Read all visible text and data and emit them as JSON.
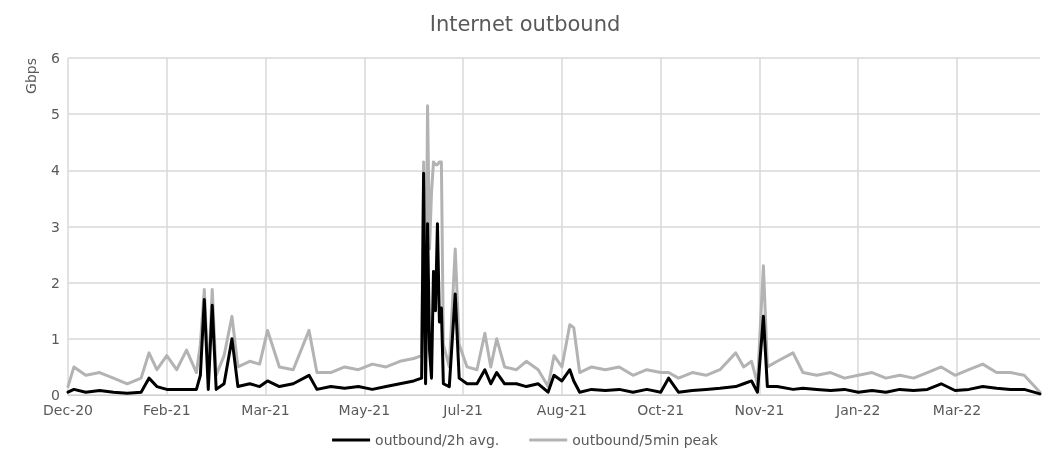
{
  "chart_data": {
    "type": "line",
    "title": "Internet outbound",
    "ylabel": "Gbps",
    "x": [
      "2020-12-15",
      "2020-12-18",
      "2020-12-24",
      "2020-12-31",
      "2021-01-07",
      "2021-01-14",
      "2021-01-21",
      "2021-01-25",
      "2021-01-29",
      "2021-02-03",
      "2021-02-08",
      "2021-02-13",
      "2021-02-18",
      "2021-02-20",
      "2021-02-22",
      "2021-02-24",
      "2021-02-26",
      "2021-02-28",
      "2021-03-04",
      "2021-03-08",
      "2021-03-11",
      "2021-03-17",
      "2021-03-22",
      "2021-03-26",
      "2021-04-01",
      "2021-04-08",
      "2021-04-16",
      "2021-04-20",
      "2021-04-27",
      "2021-05-04",
      "2021-05-11",
      "2021-05-18",
      "2021-05-25",
      "2021-06-01",
      "2021-06-08",
      "2021-06-12",
      "2021-06-13",
      "2021-06-14",
      "2021-06-15",
      "2021-06-16",
      "2021-06-17",
      "2021-06-18",
      "2021-06-19",
      "2021-06-20",
      "2021-06-21",
      "2021-06-22",
      "2021-06-23",
      "2021-06-26",
      "2021-06-29",
      "2021-07-01",
      "2021-07-05",
      "2021-07-10",
      "2021-07-14",
      "2021-07-17",
      "2021-07-20",
      "2021-07-24",
      "2021-07-30",
      "2021-08-04",
      "2021-08-10",
      "2021-08-15",
      "2021-08-18",
      "2021-08-22",
      "2021-08-26",
      "2021-08-28",
      "2021-08-31",
      "2021-09-06",
      "2021-09-13",
      "2021-09-20",
      "2021-09-27",
      "2021-10-04",
      "2021-10-11",
      "2021-10-15",
      "2021-10-20",
      "2021-10-27",
      "2021-11-03",
      "2021-11-10",
      "2021-11-18",
      "2021-11-22",
      "2021-11-26",
      "2021-11-29",
      "2021-12-02",
      "2021-12-04",
      "2021-12-09",
      "2021-12-17",
      "2021-12-22",
      "2021-12-29",
      "2022-01-05",
      "2022-01-12",
      "2022-01-19",
      "2022-01-26",
      "2022-02-02",
      "2022-02-09",
      "2022-02-16",
      "2022-02-23",
      "2022-03-02",
      "2022-03-09",
      "2022-03-16",
      "2022-03-23",
      "2022-03-30",
      "2022-04-06",
      "2022-04-13",
      "2022-04-21"
    ],
    "series": [
      {
        "name": "outbound/2h avg.",
        "color": "#000000",
        "values": [
          0.05,
          0.1,
          0.05,
          0.08,
          0.05,
          0.03,
          0.05,
          0.3,
          0.15,
          0.1,
          0.1,
          0.1,
          0.1,
          0.35,
          1.7,
          0.1,
          1.6,
          0.1,
          0.2,
          1.0,
          0.15,
          0.2,
          0.15,
          0.25,
          0.15,
          0.2,
          0.35,
          0.1,
          0.15,
          0.12,
          0.15,
          0.1,
          0.15,
          0.2,
          0.25,
          0.3,
          3.95,
          0.2,
          3.05,
          0.8,
          0.3,
          2.2,
          1.5,
          3.05,
          1.3,
          1.55,
          0.2,
          0.15,
          1.8,
          0.3,
          0.2,
          0.2,
          0.45,
          0.2,
          0.4,
          0.2,
          0.2,
          0.15,
          0.2,
          0.05,
          0.35,
          0.25,
          0.45,
          0.25,
          0.05,
          0.1,
          0.08,
          0.1,
          0.05,
          0.1,
          0.05,
          0.3,
          0.05,
          0.08,
          0.1,
          0.12,
          0.15,
          0.2,
          0.25,
          0.05,
          1.4,
          0.15,
          0.15,
          0.1,
          0.12,
          0.1,
          0.08,
          0.1,
          0.05,
          0.08,
          0.05,
          0.1,
          0.08,
          0.1,
          0.2,
          0.08,
          0.1,
          0.15,
          0.12,
          0.1,
          0.1,
          0.02
        ]
      },
      {
        "name": "outbound/5min peak",
        "color": "#b3b3b3",
        "values": [
          0.15,
          0.5,
          0.35,
          0.4,
          0.3,
          0.2,
          0.3,
          0.75,
          0.45,
          0.7,
          0.45,
          0.8,
          0.4,
          0.9,
          1.88,
          0.3,
          1.88,
          0.35,
          0.7,
          1.4,
          0.5,
          0.6,
          0.55,
          1.15,
          0.5,
          0.45,
          1.15,
          0.4,
          0.4,
          0.5,
          0.45,
          0.55,
          0.5,
          0.6,
          0.65,
          0.7,
          4.15,
          0.8,
          5.15,
          2.6,
          3.6,
          4.15,
          4.1,
          4.1,
          4.15,
          4.15,
          0.9,
          0.5,
          2.6,
          0.9,
          0.5,
          0.45,
          1.1,
          0.5,
          1.0,
          0.5,
          0.45,
          0.6,
          0.45,
          0.15,
          0.7,
          0.5,
          1.25,
          1.2,
          0.4,
          0.5,
          0.45,
          0.5,
          0.35,
          0.45,
          0.4,
          0.4,
          0.3,
          0.4,
          0.35,
          0.45,
          0.75,
          0.5,
          0.6,
          0.2,
          2.3,
          0.5,
          0.6,
          0.75,
          0.4,
          0.35,
          0.4,
          0.3,
          0.35,
          0.4,
          0.3,
          0.35,
          0.3,
          0.4,
          0.5,
          0.35,
          0.45,
          0.55,
          0.4,
          0.4,
          0.35,
          0.05
        ]
      }
    ],
    "xlim": [
      "2020-12-15",
      "2022-04-21"
    ],
    "xticks": [
      {
        "value": "2020-12-15",
        "label": "Dec-20"
      },
      {
        "value": "2021-02-03",
        "label": "Feb-21"
      },
      {
        "value": "2021-03-25",
        "label": "Mar-21"
      },
      {
        "value": "2021-05-14",
        "label": "May-21"
      },
      {
        "value": "2021-07-03",
        "label": "Jul-21"
      },
      {
        "value": "2021-08-22",
        "label": "Aug-21"
      },
      {
        "value": "2021-10-11",
        "label": "Oct-21"
      },
      {
        "value": "2021-11-30",
        "label": "Nov-21"
      },
      {
        "value": "2022-01-19",
        "label": "Jan-22"
      },
      {
        "value": "2022-03-10",
        "label": "Mar-22"
      }
    ],
    "ylim": [
      0,
      6
    ],
    "yticks": [
      0,
      1,
      2,
      3,
      4,
      5,
      6
    ],
    "grid": true,
    "legend": "bottom",
    "marker": "none",
    "line_style": "solid"
  }
}
